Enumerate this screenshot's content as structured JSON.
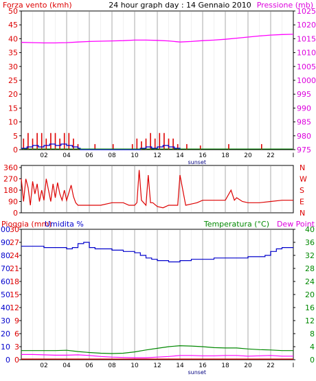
{
  "chart_data": [
    {
      "type": "line",
      "title": "24 hour graph day : 14 Gennaio 2010",
      "ylabel": "Forza vento (kmh)",
      "y2label": "Pressione (mb)",
      "x_ticks": [
        "02",
        "04",
        "06",
        "08",
        "10",
        "12",
        "14",
        "16",
        "18",
        "20",
        "22",
        "I"
      ],
      "x_note": "sunset",
      "ylim": [
        0,
        50
      ],
      "yticks": [
        0,
        5,
        10,
        15,
        20,
        25,
        30,
        35,
        40,
        45,
        50
      ],
      "y2lim": [
        975,
        1025
      ],
      "y2ticks": [
        975,
        980,
        985,
        990,
        995,
        1000,
        1005,
        1010,
        1015,
        1020,
        1025
      ],
      "grid": true,
      "series": [
        {
          "role": "pressure",
          "axis": "right",
          "color": "#ff00ff",
          "x": [
            0,
            1,
            2,
            3,
            4,
            5,
            6,
            7,
            8,
            9,
            10,
            11,
            12,
            13,
            14,
            15,
            16,
            17,
            18,
            19,
            20,
            21,
            22,
            23,
            24
          ],
          "y": [
            1013.7,
            1013.6,
            1013.5,
            1013.5,
            1013.6,
            1013.8,
            1014.0,
            1014.1,
            1014.2,
            1014.3,
            1014.5,
            1014.5,
            1014.4,
            1014.2,
            1013.8,
            1014.0,
            1014.3,
            1014.5,
            1014.8,
            1015.2,
            1015.6,
            1016.0,
            1016.3,
            1016.5,
            1016.6
          ]
        },
        {
          "role": "wind-gust",
          "axis": "left",
          "color": "#dd0000",
          "x": [
            0.2,
            0.6,
            1.0,
            1.4,
            1.8,
            2.2,
            2.6,
            3.0,
            3.4,
            3.8,
            4.2,
            4.6,
            5.0,
            6.5,
            8.1,
            9.8,
            10.2,
            10.6,
            11.0,
            11.4,
            11.8,
            12.2,
            12.6,
            13.0,
            13.4,
            13.8,
            14.6,
            15.8,
            18.3,
            21.2
          ],
          "y": [
            4,
            6,
            4,
            6,
            6,
            4,
            6,
            6,
            4,
            6,
            6,
            4,
            2,
            2,
            2,
            2,
            4,
            3,
            4,
            6,
            4,
            6,
            6,
            4,
            4,
            2,
            2,
            1.5,
            2,
            2
          ]
        },
        {
          "role": "wind-avg",
          "axis": "left",
          "color": "#0000cc",
          "x": [
            0,
            0.5,
            1,
            1.5,
            2,
            2.5,
            3,
            3.5,
            4,
            4.5,
            5,
            5.2,
            10,
            10.5,
            11,
            11.5,
            12,
            12.5,
            13,
            13.5,
            14
          ],
          "y": [
            0.5,
            1,
            1.5,
            1,
            1.5,
            2,
            1.5,
            2,
            1.5,
            1,
            0.5,
            0,
            0,
            0.5,
            1,
            0.5,
            1,
            1.5,
            1,
            0.5,
            0
          ]
        }
      ]
    },
    {
      "type": "line",
      "ylim": [
        0,
        360
      ],
      "yticks": [
        0,
        90,
        180,
        270,
        360
      ],
      "ytick_labels": [
        "0",
        "90",
        "180",
        "270",
        "360"
      ],
      "right_labels": [
        "N",
        "W",
        "S",
        "E",
        "N"
      ],
      "series": [
        {
          "role": "wind-direction",
          "color": "#dd0000",
          "x": [
            0,
            0.2,
            0.4,
            0.6,
            0.8,
            1.0,
            1.2,
            1.4,
            1.6,
            1.8,
            2.0,
            2.2,
            2.4,
            2.6,
            2.8,
            3.0,
            3.2,
            3.4,
            3.6,
            3.8,
            4.0,
            4.2,
            4.4,
            4.6,
            4.8,
            5.0,
            6.0,
            7.0,
            8.0,
            9.0,
            9.5,
            10.0,
            10.2,
            10.4,
            10.6,
            10.8,
            11.0,
            11.2,
            11.4,
            11.6,
            12.0,
            12.5,
            13.0,
            13.5,
            13.8,
            14.0,
            14.5,
            15.0,
            15.5,
            16.0,
            17.0,
            18.0,
            18.5,
            18.8,
            19.0,
            19.5,
            20.0,
            21.0,
            22.0,
            23.0,
            24.0
          ],
          "y": [
            270,
            90,
            270,
            200,
            60,
            250,
            150,
            230,
            90,
            180,
            100,
            270,
            180,
            90,
            230,
            120,
            240,
            150,
            100,
            180,
            100,
            160,
            220,
            130,
            80,
            60,
            60,
            60,
            80,
            80,
            60,
            60,
            80,
            340,
            100,
            80,
            60,
            300,
            80,
            80,
            50,
            40,
            60,
            60,
            60,
            300,
            60,
            70,
            80,
            100,
            100,
            100,
            180,
            100,
            120,
            90,
            80,
            80,
            90,
            100,
            100
          ]
        }
      ]
    },
    {
      "type": "line",
      "left_label_1": "Pioggia (mm)",
      "left_label_2": "Umidita %",
      "right_label": "Temperatura (°C)",
      "right_label_2": "Dew Point",
      "x_ticks": [
        "02",
        "04",
        "06",
        "08",
        "10",
        "12",
        "14",
        "16",
        "18",
        "20",
        "22",
        "I"
      ],
      "x_note": "sunset",
      "rain_lim": [
        0,
        30
      ],
      "rain_ticks": [
        0,
        3,
        6,
        9,
        12,
        15,
        18,
        21,
        24,
        27,
        30
      ],
      "hum_lim": [
        0,
        100
      ],
      "hum_ticks": [
        0,
        10,
        20,
        30,
        40,
        50,
        60,
        70,
        80,
        90,
        100
      ],
      "temp_lim": [
        0,
        40
      ],
      "temp_ticks": [
        0,
        4,
        8,
        12,
        16,
        20,
        24,
        28,
        32,
        36,
        40
      ],
      "series": [
        {
          "role": "humidity",
          "axis": "humidity",
          "color": "#0000cc",
          "x": [
            0,
            1,
            2,
            3,
            4,
            4.5,
            5,
            5.5,
            6,
            6.5,
            7,
            8,
            9,
            10,
            10.5,
            11,
            11.5,
            12,
            13,
            14,
            15,
            16,
            17,
            18,
            19,
            20,
            21,
            21.5,
            22,
            22.5,
            23,
            24
          ],
          "y": [
            87,
            87,
            86,
            86,
            85,
            86,
            89,
            90,
            86,
            85,
            85,
            84,
            83,
            82,
            80,
            78,
            77,
            76,
            75,
            76,
            77,
            77,
            78,
            78,
            78,
            79,
            79,
            80,
            83,
            85,
            86,
            86
          ]
        },
        {
          "role": "temperature",
          "axis": "temp",
          "color": "#008800",
          "x": [
            0,
            1,
            2,
            3,
            4,
            5,
            6,
            7,
            8,
            9,
            10,
            11,
            12,
            13,
            14,
            15,
            16,
            17,
            18,
            19,
            20,
            21,
            22,
            23,
            24
          ],
          "y": [
            2.8,
            2.8,
            2.8,
            2.8,
            2.9,
            2.5,
            2.2,
            2.0,
            1.9,
            2.0,
            2.4,
            3.0,
            3.5,
            4.0,
            4.3,
            4.2,
            4.0,
            3.7,
            3.6,
            3.6,
            3.3,
            3.1,
            3.0,
            2.8,
            2.8
          ]
        },
        {
          "role": "dew-point",
          "axis": "temp",
          "color": "#ff00ff",
          "x": [
            0,
            1,
            2,
            3,
            4,
            5,
            6,
            7,
            8,
            9,
            10,
            11,
            12,
            13,
            14,
            15,
            16,
            17,
            18,
            19,
            20,
            21,
            22,
            23,
            24
          ],
          "y": [
            1.6,
            1.6,
            1.5,
            1.4,
            1.4,
            1.5,
            1.3,
            1.0,
            0.8,
            0.7,
            0.6,
            0.6,
            0.8,
            1.0,
            1.3,
            1.3,
            1.2,
            1.2,
            1.3,
            1.3,
            1.1,
            1.2,
            1.3,
            1.1,
            1.1
          ]
        },
        {
          "role": "rain",
          "axis": "rain",
          "color": "#dd0000",
          "x": [
            0,
            24
          ],
          "y": [
            0,
            0
          ]
        }
      ]
    }
  ]
}
